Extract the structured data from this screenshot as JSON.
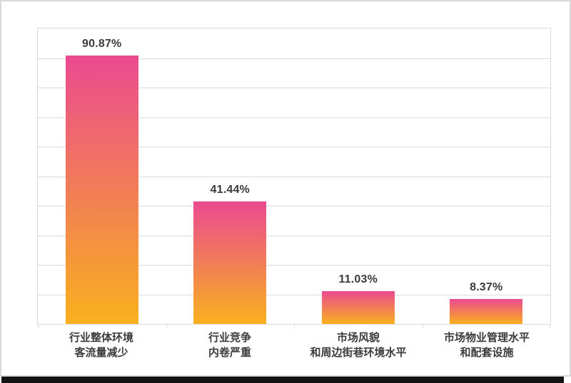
{
  "page": {
    "background": "#ffffff",
    "border_color": "#d9d9d9",
    "bottom_band_color": "#121212"
  },
  "chart_data": {
    "type": "bar",
    "categories": [
      "行业整体环境\n客流量减少",
      "行业竞争\n内卷严重",
      "市场风貌\n和周边街巷环境水平",
      "市场物业管理水平\n和配套设施"
    ],
    "values": [
      90.87,
      41.44,
      11.03,
      8.37
    ],
    "value_labels": [
      "90.87%",
      "41.44%",
      "11.03%",
      "8.37%"
    ],
    "ylim": [
      0,
      100
    ],
    "grid": true,
    "grid_divisions": 10,
    "legend_position": "none",
    "bar_gradient_top": "#eb4a90",
    "bar_gradient_bottom": "#f8b01e",
    "grid_color": "#dadada",
    "value_label_color": "#3b3b3b",
    "category_label_color": "#3b3b3b"
  }
}
